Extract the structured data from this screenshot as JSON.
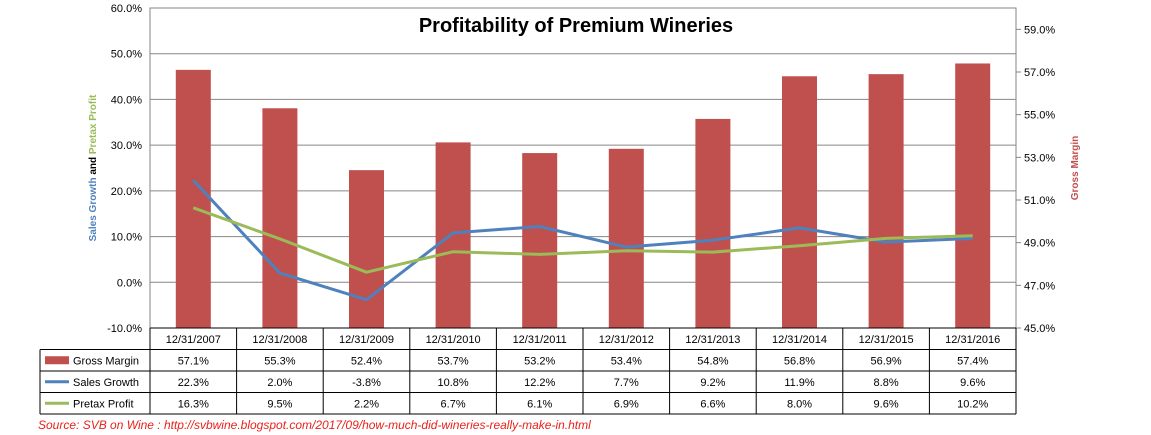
{
  "chart_data": {
    "type": "bar",
    "title": "Profitability of Premium Wineries",
    "categories": [
      "12/31/2007",
      "12/31/2008",
      "12/31/2009",
      "12/31/2010",
      "12/31/2011",
      "12/31/2012",
      "12/31/2013",
      "12/31/2014",
      "12/31/2015",
      "12/31/2016"
    ],
    "series": [
      {
        "name": "Gross Margin",
        "type": "bar",
        "axis": "right",
        "color": "#c0504d",
        "values": [
          57.1,
          55.3,
          52.4,
          53.7,
          53.2,
          53.4,
          54.8,
          56.8,
          56.9,
          57.4
        ],
        "labels": [
          "57.1%",
          "55.3%",
          "52.4%",
          "53.7%",
          "53.2%",
          "53.4%",
          "54.8%",
          "56.8%",
          "56.9%",
          "57.4%"
        ]
      },
      {
        "name": "Sales Growth",
        "type": "line",
        "axis": "left",
        "color": "#4f81bd",
        "values": [
          22.3,
          2.0,
          -3.8,
          10.8,
          12.2,
          7.7,
          9.2,
          11.9,
          8.8,
          9.6
        ],
        "labels": [
          "22.3%",
          "2.0%",
          "-3.8%",
          "10.8%",
          "12.2%",
          "7.7%",
          "9.2%",
          "11.9%",
          "8.8%",
          "9.6%"
        ]
      },
      {
        "name": "Pretax Profit",
        "type": "line",
        "axis": "left",
        "color": "#9bbb59",
        "values": [
          16.3,
          9.5,
          2.2,
          6.7,
          6.1,
          6.9,
          6.6,
          8.0,
          9.6,
          10.2
        ],
        "labels": [
          "16.3%",
          "9.5%",
          "2.2%",
          "6.7%",
          "6.1%",
          "6.9%",
          "6.6%",
          "8.0%",
          "9.6%",
          "10.2%"
        ]
      }
    ],
    "ylim_left": [
      -10,
      60
    ],
    "ylim_right": [
      45,
      60
    ],
    "yticks_left": [
      "-10.0%",
      "0.0%",
      "10.0%",
      "20.0%",
      "30.0%",
      "40.0%",
      "50.0%",
      "60.0%"
    ],
    "yticks_right": [
      "45.0%",
      "47.0%",
      "49.0%",
      "51.0%",
      "53.0%",
      "55.0%",
      "57.0%",
      "59.0%"
    ],
    "ylabel_left": {
      "part1": "Sales Growth",
      "part2": "and",
      "part3": "Pretax Profit"
    },
    "ylabel_right": "Gross Margin",
    "colors": {
      "left_label_part1": "#4f81bd",
      "left_label_part2": "#000000",
      "left_label_part3": "#9bbb59",
      "right_label": "#c0504d"
    },
    "grid": "horizontal",
    "legend": "data-table"
  },
  "source": "Source: SVB on Wine : http://svbwine.blogspot.com/2017/09/how-much-did-wineries-really-make-in.html"
}
